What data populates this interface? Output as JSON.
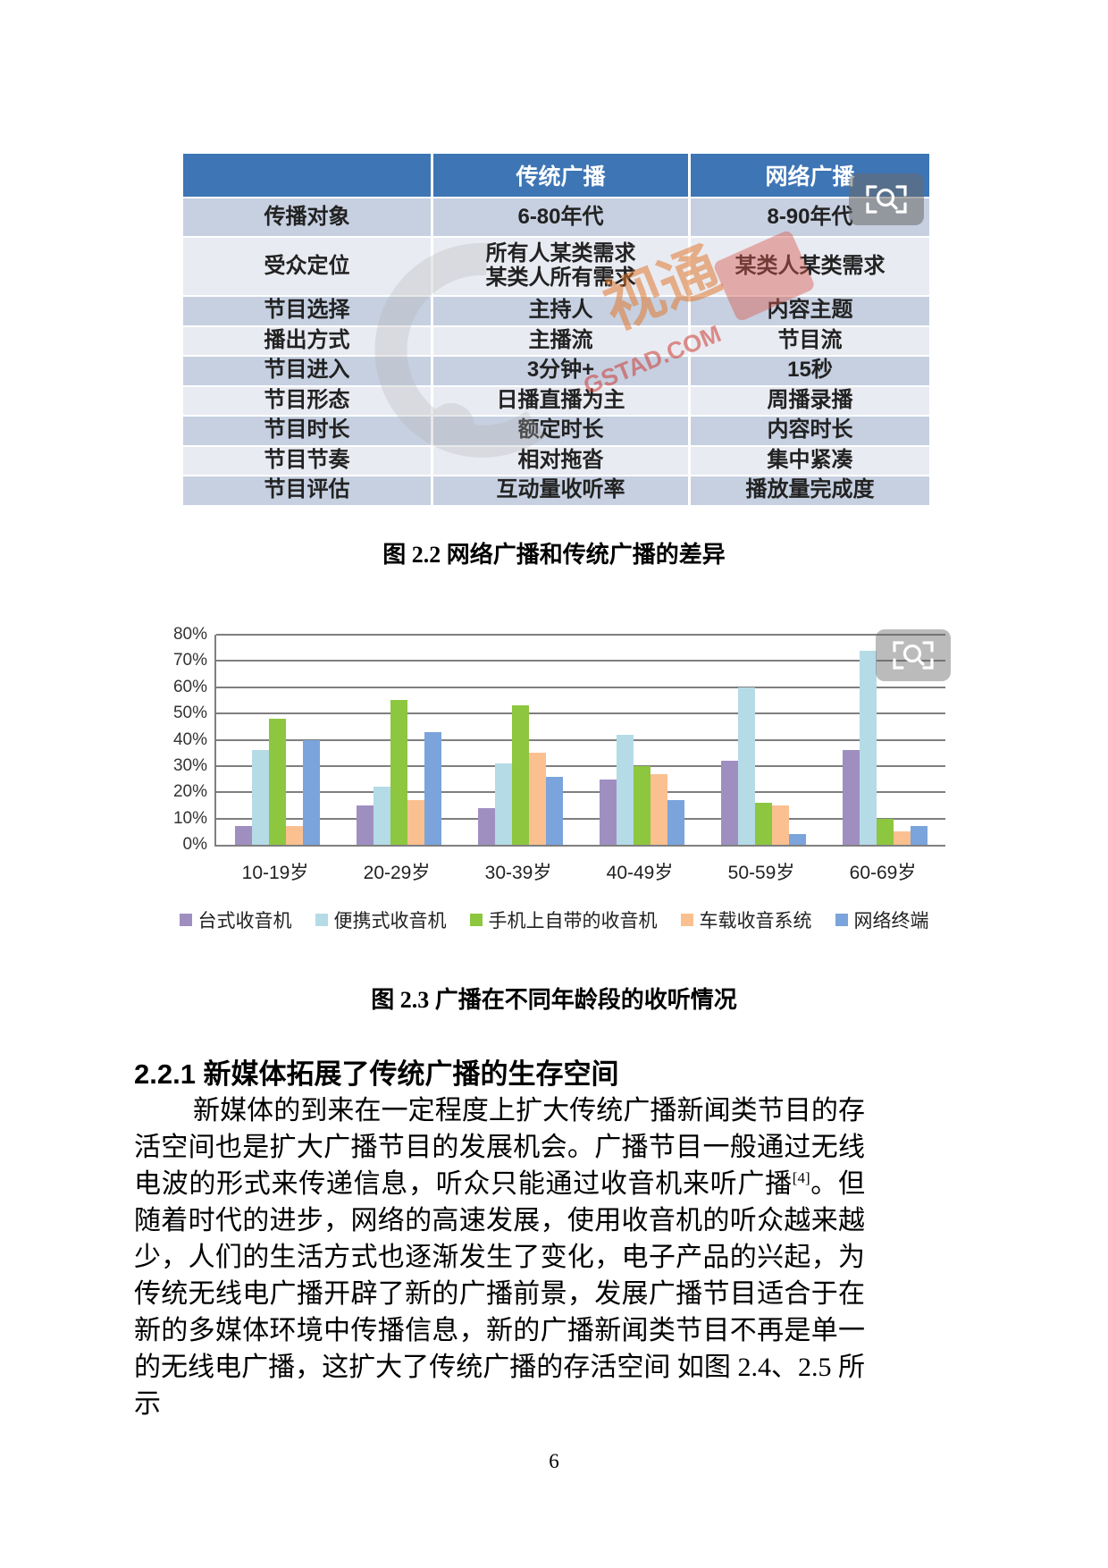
{
  "page": {
    "number": "6"
  },
  "figure_table": {
    "header": [
      "",
      "传统广播",
      "网络广播"
    ],
    "rows": [
      {
        "label": "传播对象",
        "traditional": "6-80年代",
        "network": "8-90年代"
      },
      {
        "label": "受众定位",
        "traditional": "所有人某类需求\n某类人所有需求",
        "network": "某类人某类需求"
      },
      {
        "label": "节目选择",
        "traditional": "主持人",
        "network": "内容主题"
      },
      {
        "label": "播出方式",
        "traditional": "主播流",
        "network": "节目流"
      },
      {
        "label": "节目进入",
        "traditional": "3分钟+",
        "network": "15秒"
      },
      {
        "label": "节目形态",
        "traditional": "日播直播为主",
        "network": "周播录播"
      },
      {
        "label": "节目时长",
        "traditional": "额定时长",
        "network": "内容时长"
      },
      {
        "label": "节目节奏",
        "traditional": "相对拖沓",
        "network": "集中紧凑"
      },
      {
        "label": "节目评估",
        "traditional": "互动量收听率",
        "network": "播放量完成度"
      }
    ],
    "caption": "图 2.2 网络广播和传统广播的差异",
    "watermark": {
      "brand": "视通",
      "site": "GSTAD.COM"
    },
    "colors": {
      "header": "#3e75b5",
      "row_dark": "#c6d0e1",
      "row_light": "#e9ebf2"
    }
  },
  "chart_data": {
    "type": "bar",
    "title": "",
    "categories": [
      "10-19岁",
      "20-29岁",
      "30-39岁",
      "40-49岁",
      "50-59岁",
      "60-69岁"
    ],
    "series": [
      {
        "name": "台式收音机",
        "color": "#9f8fc1",
        "values": [
          7,
          15,
          14,
          25,
          32,
          36
        ]
      },
      {
        "name": "便携式收音机",
        "color": "#b5dbe7",
        "values": [
          36,
          22,
          31,
          42,
          60,
          74
        ]
      },
      {
        "name": "手机上自带的收音机",
        "color": "#8dc63f",
        "values": [
          48,
          55,
          53,
          30,
          16,
          10
        ]
      },
      {
        "name": "车载收音系统",
        "color": "#fac090",
        "values": [
          7,
          17,
          35,
          27,
          15,
          5
        ]
      },
      {
        "name": "网络终端",
        "color": "#7aa4db",
        "values": [
          40,
          43,
          26,
          17,
          4,
          7
        ]
      }
    ],
    "ylim": [
      0,
      80
    ],
    "ytick_step": 10,
    "ytick_labels": [
      "0%",
      "10%",
      "20%",
      "30%",
      "40%",
      "50%",
      "60%",
      "70%",
      "80%"
    ],
    "grid": true,
    "legend_position": "bottom"
  },
  "chart_caption": "图 2.3 广播在不同年龄段的收听情况",
  "section": {
    "heading": "2.2.1 新媒体拓展了传统广播的生存空间",
    "paragraph": {
      "part1": "新媒体的到来在一定程度上扩大传统广播新闻类节目的存活空间也是扩大广播节目的发展机会。广播节目一般通过无线电波的形式来传递信息，听众只能通过收音机来听广播",
      "citation": "[4]",
      "part2": "。但随着时代的进步，网络的高速发展，使用收音机的听众越来越少，人们的生活方式也逐渐发生了变化，电子产品的兴起，为传统无线电广播开辟了新的广播前景，发展广播节目适合于在新的多媒体环境中传播信息，新的广播新闻类节目不再是单一的无线电广播，这扩大了传统广播的存活空间 如图 2.4、2.5 所示"
    }
  },
  "icons": {
    "table_zoom_button": "magnifier-preview-icon",
    "chart_zoom_button": "magnifier-preview-icon",
    "watermark_logo": "gs-swirl-logo"
  }
}
